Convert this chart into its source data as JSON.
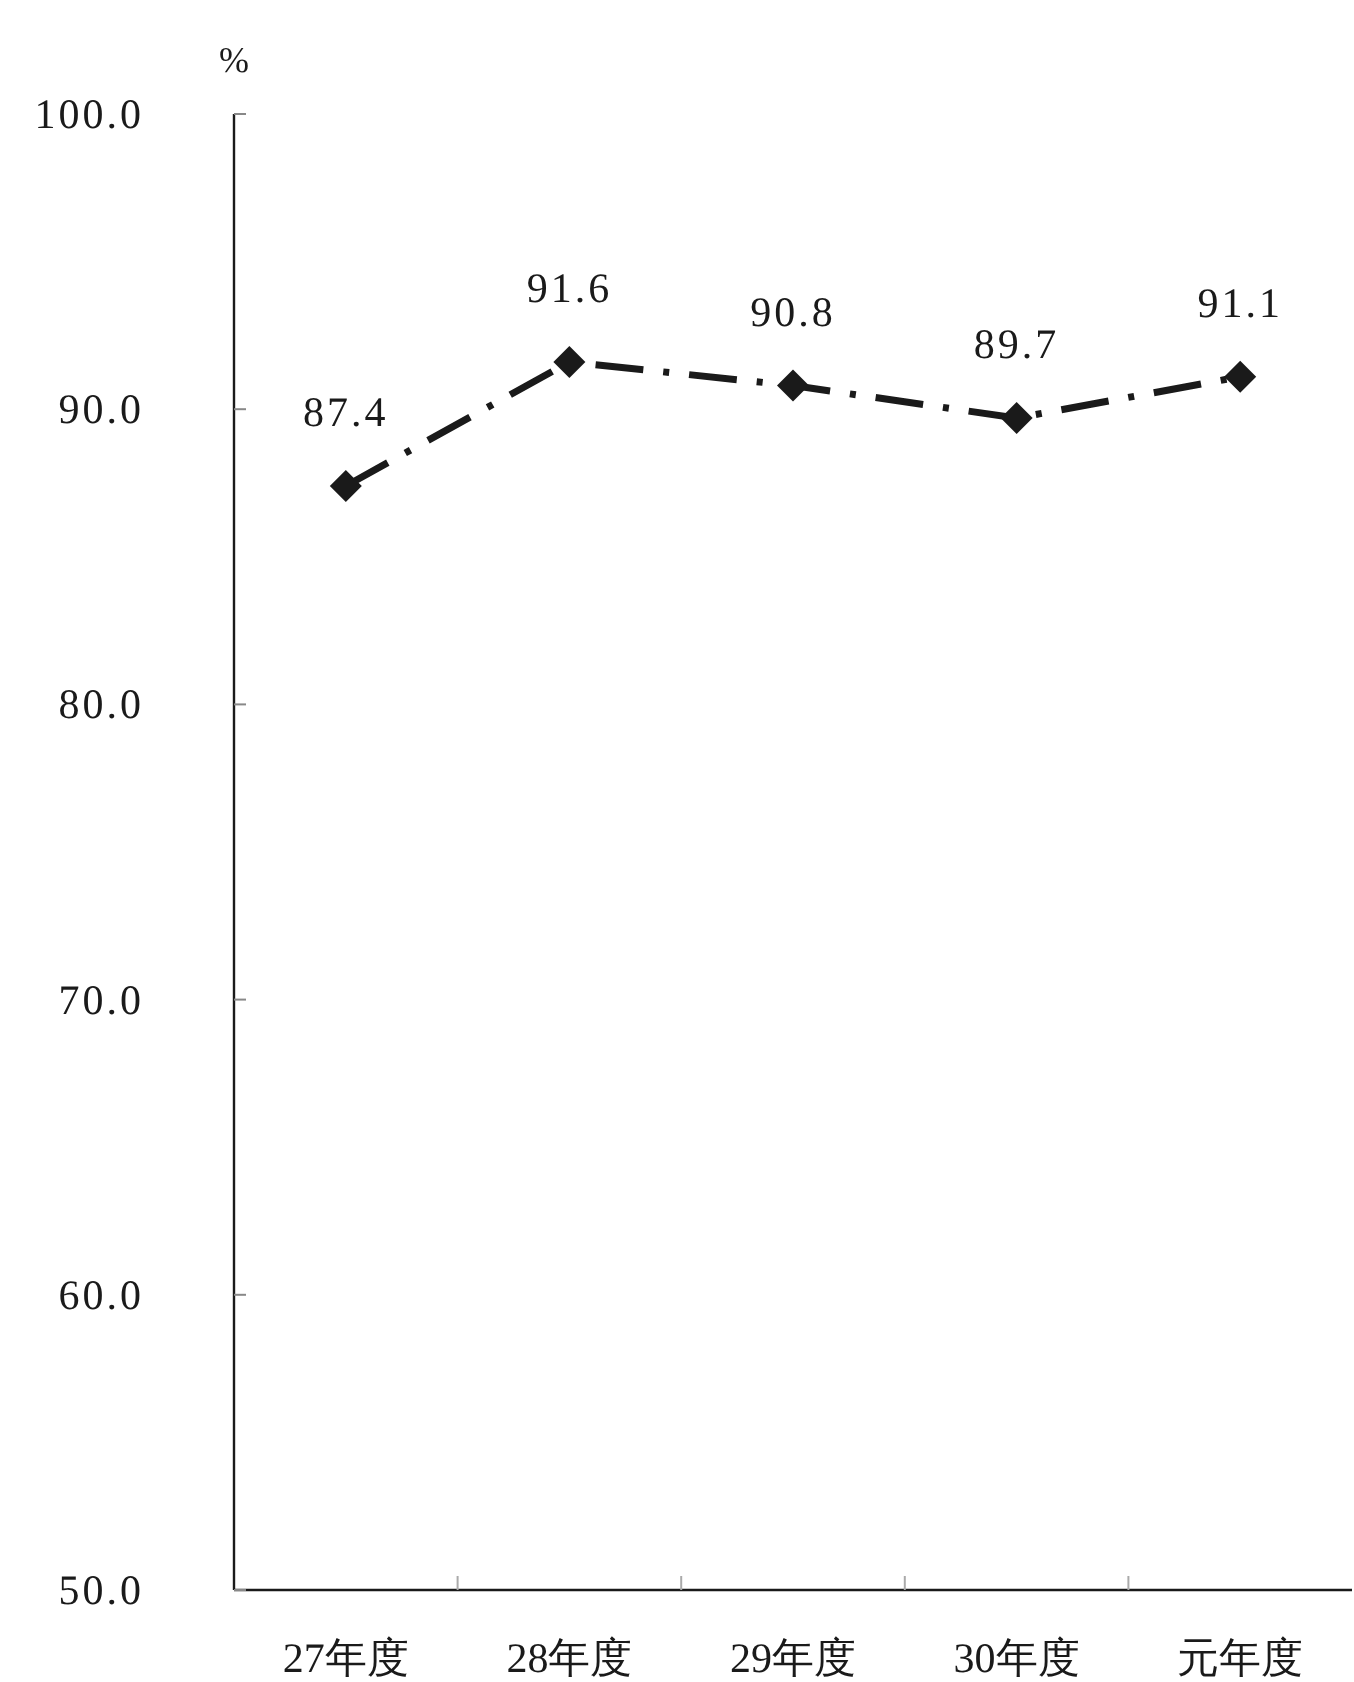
{
  "chart_data": {
    "type": "line",
    "ylabel": "%",
    "categories": [
      "27年度",
      "28年度",
      "29年度",
      "30年度",
      "元年度"
    ],
    "series": [
      {
        "color": "#1a1a1a",
        "values": [
          87.4,
          91.6,
          90.8,
          89.7,
          91.1
        ]
      }
    ],
    "ylim": [
      50,
      100
    ],
    "yticks": [
      {
        "value": 50,
        "label": "50.0"
      },
      {
        "value": 60,
        "label": "60.0"
      },
      {
        "value": 70,
        "label": "70.0"
      },
      {
        "value": 80,
        "label": "80.0"
      },
      {
        "value": 90,
        "label": "90.0"
      },
      {
        "value": 100,
        "label": "100.0"
      }
    ],
    "data_labels": true,
    "marker": "diamond",
    "line_style": "dashed"
  }
}
